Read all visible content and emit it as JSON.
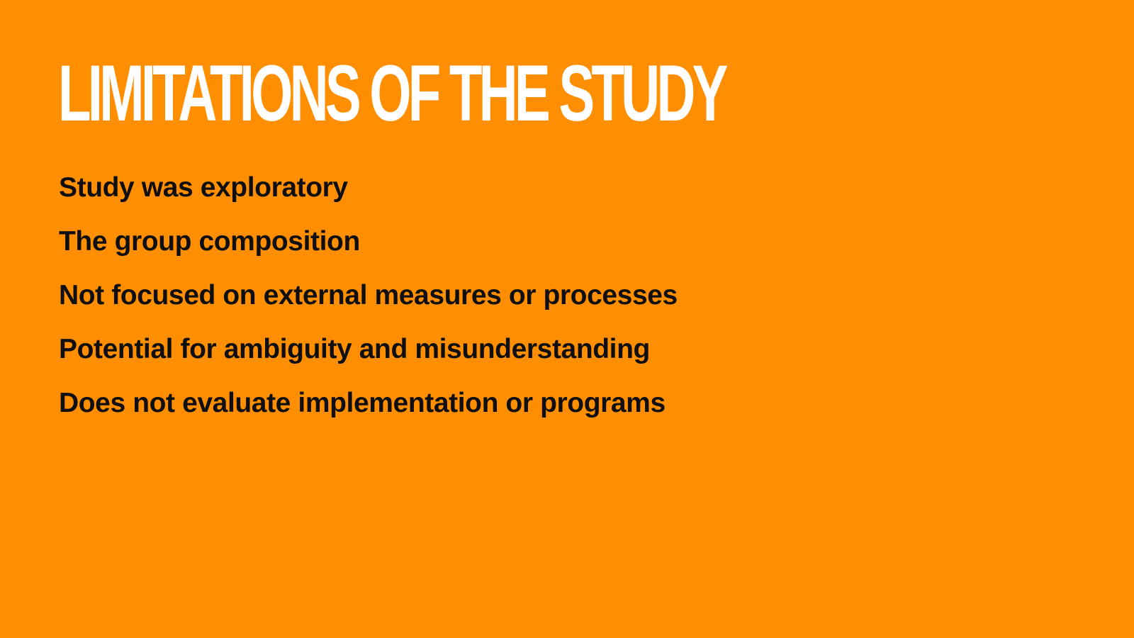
{
  "slide": {
    "background_color": "#FF8F00",
    "title": "LIMITATIONS OF THE STUDY",
    "title_color": "#FFFFFF",
    "text_color": "#0F0F0F",
    "bullets": [
      "Study was exploratory",
      "The group composition",
      "Not focused on external measures or processes",
      "Potential for ambiguity and misunderstanding",
      "Does not evaluate implementation or programs"
    ]
  }
}
